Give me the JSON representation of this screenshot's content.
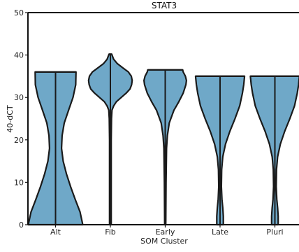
{
  "chart_data": {
    "type": "violin",
    "title": "STAT3",
    "xlabel": "SOM Cluster",
    "ylabel": "40-dCT",
    "ylim": [
      0,
      50
    ],
    "yticks": [
      0,
      10,
      20,
      30,
      40,
      50
    ],
    "grid": false,
    "colors": {
      "fill": "#6fa8c8",
      "stroke": "#1a1a1a"
    },
    "categories": [
      "Alt",
      "Fib",
      "Early",
      "Late",
      "Pluri"
    ],
    "violins": [
      {
        "category": "Alt",
        "min": 0,
        "max": 36,
        "density": [
          [
            0,
            1.0
          ],
          [
            3,
            0.9
          ],
          [
            6,
            0.72
          ],
          [
            9,
            0.55
          ],
          [
            12,
            0.4
          ],
          [
            15,
            0.28
          ],
          [
            18,
            0.22
          ],
          [
            21,
            0.24
          ],
          [
            24,
            0.32
          ],
          [
            27,
            0.48
          ],
          [
            30,
            0.64
          ],
          [
            33,
            0.74
          ],
          [
            36,
            0.75
          ]
        ]
      },
      {
        "category": "Fib",
        "min": 0,
        "max": 40.2,
        "density": [
          [
            0,
            0.03
          ],
          [
            10,
            0.03
          ],
          [
            20,
            0.03
          ],
          [
            25,
            0.04
          ],
          [
            27,
            0.06
          ],
          [
            28,
            0.12
          ],
          [
            29,
            0.22
          ],
          [
            30,
            0.4
          ],
          [
            31,
            0.58
          ],
          [
            32,
            0.72
          ],
          [
            33,
            0.78
          ],
          [
            34,
            0.8
          ],
          [
            35,
            0.77
          ],
          [
            36,
            0.66
          ],
          [
            37,
            0.45
          ],
          [
            38,
            0.25
          ],
          [
            39,
            0.12
          ],
          [
            40.2,
            0.05
          ]
        ]
      },
      {
        "category": "Early",
        "min": 0,
        "max": 36.5,
        "density": [
          [
            0,
            0.02
          ],
          [
            10,
            0.03
          ],
          [
            18,
            0.05
          ],
          [
            21,
            0.08
          ],
          [
            24,
            0.15
          ],
          [
            27,
            0.32
          ],
          [
            29,
            0.5
          ],
          [
            31,
            0.66
          ],
          [
            33,
            0.76
          ],
          [
            34,
            0.78
          ],
          [
            35,
            0.74
          ],
          [
            36,
            0.66
          ],
          [
            36.5,
            0.64
          ]
        ]
      },
      {
        "category": "Late",
        "min": 0,
        "max": 35,
        "density": [
          [
            0,
            0.12
          ],
          [
            2,
            0.12
          ],
          [
            4,
            0.1
          ],
          [
            6,
            0.07
          ],
          [
            9,
            0.05
          ],
          [
            13,
            0.06
          ],
          [
            16,
            0.1
          ],
          [
            19,
            0.2
          ],
          [
            22,
            0.36
          ],
          [
            25,
            0.55
          ],
          [
            28,
            0.72
          ],
          [
            31,
            0.82
          ],
          [
            33,
            0.87
          ],
          [
            35,
            0.9
          ]
        ]
      },
      {
        "category": "Pluri",
        "min": 0,
        "max": 35,
        "density": [
          [
            0,
            0.12
          ],
          [
            2,
            0.12
          ],
          [
            4,
            0.1
          ],
          [
            6,
            0.07
          ],
          [
            9,
            0.05
          ],
          [
            13,
            0.06
          ],
          [
            16,
            0.1
          ],
          [
            19,
            0.2
          ],
          [
            22,
            0.36
          ],
          [
            25,
            0.55
          ],
          [
            28,
            0.72
          ],
          [
            31,
            0.82
          ],
          [
            33,
            0.87
          ],
          [
            35,
            0.9
          ]
        ]
      }
    ]
  }
}
